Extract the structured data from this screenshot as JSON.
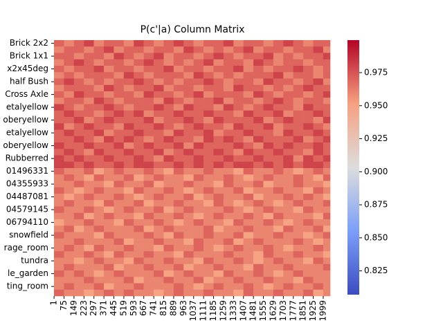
{
  "chart_data": {
    "type": "heatmap",
    "title": "P(c'|a) Column Matrix",
    "rows": [
      "Brick 2x2",
      null,
      "Brick 1x1",
      null,
      "x2x45deg",
      null,
      "half Bush",
      null,
      "Cross Axle",
      null,
      "etalyellow",
      null,
      "oberyellow",
      null,
      "etalyellow",
      null,
      "oberyellow",
      null,
      "Rubberred",
      null,
      "01496331",
      null,
      "04355933",
      null,
      "04487081",
      null,
      "04579145",
      null,
      "06794110",
      null,
      "snowfield",
      null,
      "rage_room",
      null,
      "tundra",
      null,
      "le_garden",
      null,
      "ting_room",
      null
    ],
    "x": [
      1,
      75,
      149,
      223,
      297,
      371,
      445,
      519,
      593,
      667,
      741,
      815,
      889,
      963,
      1037,
      1111,
      1185,
      1259,
      1333,
      1407,
      1481,
      1555,
      1629,
      1703,
      1777,
      1851,
      1925,
      1999
    ],
    "xticks": [
      1,
      75,
      149,
      223,
      297,
      371,
      445,
      519,
      593,
      667,
      741,
      815,
      889,
      963,
      1037,
      1111,
      1185,
      1259,
      1333,
      1407,
      1481,
      1555,
      1629,
      1703,
      1777,
      1851,
      1925,
      1999
    ],
    "xlim": [
      0.5,
      2050.5
    ],
    "values": [
      [
        0.97,
        0.96,
        0.97,
        0.98,
        0.96,
        0.97,
        0.97,
        0.96,
        0.98,
        0.97,
        0.96,
        0.97,
        0.98,
        0.97,
        0.96,
        0.97,
        0.97,
        0.98,
        0.96,
        0.97,
        0.97,
        0.96,
        0.97,
        0.98,
        0.97,
        0.96,
        0.97,
        0.97
      ],
      [
        0.96,
        0.97,
        0.97,
        0.96,
        0.97,
        0.98,
        0.96,
        0.97,
        0.97,
        0.96,
        0.97,
        0.97,
        0.96,
        0.98,
        0.97,
        0.96,
        0.97,
        0.96,
        0.97,
        0.98,
        0.96,
        0.97,
        0.97,
        0.96,
        0.97,
        0.97,
        0.98,
        0.96
      ],
      [
        0.97,
        0.97,
        0.96,
        0.97,
        0.97,
        0.96,
        0.98,
        0.97,
        0.96,
        0.97,
        0.98,
        0.96,
        0.97,
        0.97,
        0.96,
        0.97,
        0.98,
        0.97,
        0.96,
        0.97,
        0.97,
        0.98,
        0.96,
        0.97,
        0.96,
        0.97,
        0.97,
        0.98
      ],
      [
        0.96,
        0.97,
        0.98,
        0.97,
        0.96,
        0.97,
        0.97,
        0.96,
        0.97,
        0.98,
        0.97,
        0.96,
        0.97,
        0.96,
        0.97,
        0.98,
        0.96,
        0.97,
        0.97,
        0.96,
        0.98,
        0.97,
        0.96,
        0.97,
        0.97,
        0.96,
        0.97,
        0.97
      ],
      [
        0.97,
        0.96,
        0.97,
        0.97,
        0.98,
        0.96,
        0.97,
        0.97,
        0.96,
        0.97,
        0.97,
        0.98,
        0.96,
        0.97,
        0.97,
        0.96,
        0.97,
        0.97,
        0.98,
        0.96,
        0.97,
        0.96,
        0.97,
        0.97,
        0.98,
        0.97,
        0.96,
        0.97
      ],
      [
        0.96,
        0.97,
        0.96,
        0.97,
        0.97,
        0.97,
        0.96,
        0.98,
        0.97,
        0.96,
        0.97,
        0.97,
        0.97,
        0.96,
        0.98,
        0.97,
        0.96,
        0.97,
        0.96,
        0.97,
        0.97,
        0.97,
        0.98,
        0.96,
        0.97,
        0.97,
        0.96,
        0.97
      ],
      [
        0.97,
        0.98,
        0.97,
        0.96,
        0.97,
        0.96,
        0.97,
        0.97,
        0.98,
        0.97,
        0.96,
        0.97,
        0.96,
        0.97,
        0.97,
        0.98,
        0.97,
        0.96,
        0.97,
        0.97,
        0.96,
        0.98,
        0.97,
        0.97,
        0.96,
        0.97,
        0.98,
        0.96
      ],
      [
        0.96,
        0.97,
        0.97,
        0.97,
        0.96,
        0.98,
        0.97,
        0.96,
        0.97,
        0.97,
        0.98,
        0.96,
        0.97,
        0.97,
        0.96,
        0.97,
        0.97,
        0.96,
        0.98,
        0.97,
        0.97,
        0.96,
        0.97,
        0.96,
        0.97,
        0.98,
        0.97,
        0.97
      ],
      [
        0.97,
        0.96,
        0.98,
        0.97,
        0.97,
        0.96,
        0.97,
        0.97,
        0.96,
        0.98,
        0.97,
        0.97,
        0.96,
        0.97,
        0.98,
        0.96,
        0.97,
        0.97,
        0.97,
        0.96,
        0.98,
        0.97,
        0.96,
        0.97,
        0.97,
        0.96,
        0.97,
        0.98
      ],
      [
        0.96,
        0.97,
        0.97,
        0.96,
        0.98,
        0.97,
        0.96,
        0.97,
        0.97,
        0.97,
        0.96,
        0.98,
        0.97,
        0.96,
        0.97,
        0.97,
        0.98,
        0.96,
        0.97,
        0.97,
        0.96,
        0.97,
        0.98,
        0.97,
        0.96,
        0.97,
        0.97,
        0.96
      ],
      [
        0.98,
        0.97,
        0.96,
        0.97,
        0.97,
        0.98,
        0.97,
        0.96,
        0.97,
        0.97,
        0.98,
        0.97,
        0.96,
        0.98,
        0.97,
        0.97,
        0.96,
        0.98,
        0.97,
        0.96,
        0.97,
        0.98,
        0.97,
        0.97,
        0.96,
        0.98,
        0.97,
        0.97
      ],
      [
        0.97,
        0.98,
        0.97,
        0.97,
        0.96,
        0.97,
        0.98,
        0.97,
        0.98,
        0.96,
        0.97,
        0.97,
        0.98,
        0.97,
        0.97,
        0.98,
        0.97,
        0.97,
        0.96,
        0.98,
        0.97,
        0.97,
        0.98,
        0.96,
        0.97,
        0.97,
        0.98,
        0.97
      ],
      [
        0.97,
        0.97,
        0.98,
        0.96,
        0.97,
        0.98,
        0.97,
        0.97,
        0.97,
        0.98,
        0.96,
        0.97,
        0.97,
        0.98,
        0.97,
        0.96,
        0.98,
        0.97,
        0.97,
        0.97,
        0.98,
        0.96,
        0.97,
        0.98,
        0.97,
        0.97,
        0.96,
        0.98
      ],
      [
        0.98,
        0.96,
        0.97,
        0.98,
        0.97,
        0.97,
        0.96,
        0.98,
        0.97,
        0.97,
        0.98,
        0.97,
        0.96,
        0.97,
        0.98,
        0.97,
        0.97,
        0.96,
        0.98,
        0.97,
        0.97,
        0.98,
        0.96,
        0.97,
        0.97,
        0.98,
        0.97,
        0.96
      ],
      [
        0.97,
        0.98,
        0.97,
        0.97,
        0.98,
        0.96,
        0.97,
        0.97,
        0.98,
        0.97,
        0.97,
        0.96,
        0.98,
        0.97,
        0.97,
        0.98,
        0.96,
        0.97,
        0.97,
        0.98,
        0.97,
        0.97,
        0.96,
        0.98,
        0.97,
        0.97,
        0.98,
        0.97
      ],
      [
        0.97,
        0.97,
        0.98,
        0.97,
        0.96,
        0.98,
        0.97,
        0.98,
        0.97,
        0.96,
        0.97,
        0.98,
        0.97,
        0.97,
        0.96,
        0.98,
        0.97,
        0.98,
        0.97,
        0.96,
        0.98,
        0.97,
        0.97,
        0.97,
        0.98,
        0.96,
        0.97,
        0.98
      ],
      [
        0.98,
        0.97,
        0.97,
        0.98,
        0.97,
        0.97,
        0.98,
        0.96,
        0.97,
        0.98,
        0.97,
        0.97,
        0.98,
        0.96,
        0.98,
        0.97,
        0.97,
        0.97,
        0.98,
        0.97,
        0.96,
        0.98,
        0.97,
        0.98,
        0.97,
        0.97,
        0.98,
        0.97
      ],
      [
        0.97,
        0.98,
        0.97,
        0.96,
        0.98,
        0.97,
        0.97,
        0.98,
        0.97,
        0.97,
        0.98,
        0.96,
        0.97,
        0.98,
        0.97,
        0.97,
        0.98,
        0.97,
        0.96,
        0.98,
        0.97,
        0.97,
        0.98,
        0.97,
        0.97,
        0.96,
        0.98,
        0.97
      ],
      [
        0.98,
        0.97,
        0.98,
        0.97,
        0.97,
        0.98,
        0.97,
        0.97,
        0.98,
        0.97,
        0.96,
        0.98,
        0.97,
        0.97,
        0.98,
        0.97,
        0.97,
        0.98,
        0.97,
        0.97,
        0.98,
        0.97,
        0.97,
        0.98,
        0.96,
        0.98,
        0.97,
        0.98
      ],
      [
        0.98,
        0.98,
        0.97,
        0.98,
        0.97,
        0.97,
        0.98,
        0.97,
        0.98,
        0.98,
        0.97,
        0.97,
        0.98,
        0.97,
        0.98,
        0.97,
        0.98,
        0.97,
        0.98,
        0.98,
        0.97,
        0.98,
        0.97,
        0.98,
        0.97,
        0.98,
        0.98,
        0.97
      ],
      [
        0.97,
        0.96,
        0.96,
        0.97,
        0.95,
        0.96,
        0.97,
        0.96,
        0.96,
        0.97,
        0.96,
        0.95,
        0.97,
        0.96,
        0.96,
        0.97,
        0.96,
        0.96,
        0.95,
        0.97,
        0.96,
        0.96,
        0.97,
        0.96,
        0.95,
        0.96,
        0.97,
        0.96
      ],
      [
        0.96,
        0.97,
        0.96,
        0.95,
        0.97,
        0.96,
        0.96,
        0.97,
        0.95,
        0.96,
        0.97,
        0.96,
        0.96,
        0.95,
        0.97,
        0.96,
        0.96,
        0.97,
        0.96,
        0.95,
        0.96,
        0.97,
        0.96,
        0.96,
        0.97,
        0.96,
        0.95,
        0.97
      ],
      [
        0.96,
        0.96,
        0.97,
        0.96,
        0.96,
        0.95,
        0.97,
        0.96,
        0.96,
        0.97,
        0.95,
        0.96,
        0.96,
        0.97,
        0.96,
        0.96,
        0.95,
        0.97,
        0.96,
        0.96,
        0.97,
        0.95,
        0.96,
        0.96,
        0.97,
        0.96,
        0.96,
        0.95
      ],
      [
        0.97,
        0.96,
        0.95,
        0.96,
        0.97,
        0.96,
        0.96,
        0.95,
        0.97,
        0.96,
        0.96,
        0.97,
        0.96,
        0.95,
        0.96,
        0.97,
        0.96,
        0.96,
        0.97,
        0.95,
        0.96,
        0.96,
        0.97,
        0.96,
        0.96,
        0.95,
        0.97,
        0.96
      ],
      [
        0.96,
        0.95,
        0.96,
        0.97,
        0.96,
        0.96,
        0.97,
        0.96,
        0.95,
        0.96,
        0.97,
        0.96,
        0.96,
        0.97,
        0.95,
        0.96,
        0.97,
        0.96,
        0.96,
        0.97,
        0.95,
        0.96,
        0.96,
        0.97,
        0.96,
        0.97,
        0.96,
        0.95
      ],
      [
        0.96,
        0.97,
        0.96,
        0.96,
        0.95,
        0.97,
        0.96,
        0.96,
        0.97,
        0.95,
        0.96,
        0.96,
        0.97,
        0.96,
        0.96,
        0.95,
        0.97,
        0.96,
        0.95,
        0.96,
        0.97,
        0.96,
        0.95,
        0.96,
        0.97,
        0.96,
        0.96,
        0.97
      ],
      [
        0.97,
        0.96,
        0.96,
        0.97,
        0.96,
        0.95,
        0.96,
        0.97,
        0.96,
        0.96,
        0.97,
        0.95,
        0.96,
        0.97,
        0.96,
        0.96,
        0.96,
        0.97,
        0.96,
        0.95,
        0.96,
        0.97,
        0.96,
        0.96,
        0.95,
        0.97,
        0.96,
        0.96
      ],
      [
        0.96,
        0.96,
        0.97,
        0.95,
        0.96,
        0.97,
        0.96,
        0.96,
        0.95,
        0.97,
        0.96,
        0.96,
        0.97,
        0.96,
        0.95,
        0.96,
        0.97,
        0.96,
        0.96,
        0.97,
        0.96,
        0.95,
        0.97,
        0.96,
        0.96,
        0.96,
        0.95,
        0.97
      ],
      [
        0.95,
        0.96,
        0.96,
        0.97,
        0.96,
        0.96,
        0.95,
        0.97,
        0.96,
        0.96,
        0.97,
        0.96,
        0.95,
        0.96,
        0.97,
        0.96,
        0.96,
        0.95,
        0.97,
        0.96,
        0.96,
        0.97,
        0.96,
        0.95,
        0.96,
        0.97,
        0.96,
        0.96
      ],
      [
        0.96,
        0.97,
        0.95,
        0.96,
        0.97,
        0.96,
        0.96,
        0.96,
        0.97,
        0.95,
        0.96,
        0.97,
        0.96,
        0.96,
        0.96,
        0.97,
        0.95,
        0.96,
        0.96,
        0.97,
        0.96,
        0.96,
        0.95,
        0.97,
        0.96,
        0.96,
        0.97,
        0.95
      ],
      [
        0.97,
        0.96,
        0.96,
        0.96,
        0.95,
        0.97,
        0.96,
        0.96,
        0.96,
        0.97,
        0.96,
        0.95,
        0.97,
        0.96,
        0.96,
        0.97,
        0.96,
        0.96,
        0.97,
        0.95,
        0.96,
        0.96,
        0.97,
        0.96,
        0.96,
        0.95,
        0.96,
        0.97
      ],
      [
        0.96,
        0.96,
        0.97,
        0.96,
        0.96,
        0.96,
        0.97,
        0.95,
        0.96,
        0.96,
        0.97,
        0.96,
        0.96,
        0.95,
        0.97,
        0.96,
        0.96,
        0.97,
        0.95,
        0.96,
        0.97,
        0.96,
        0.96,
        0.96,
        0.97,
        0.96,
        0.95,
        0.96
      ],
      [
        0.96,
        0.97,
        0.96,
        0.95,
        0.97,
        0.96,
        0.96,
        0.97,
        0.96,
        0.96,
        0.95,
        0.97,
        0.96,
        0.96,
        0.97,
        0.96,
        0.95,
        0.96,
        0.97,
        0.96,
        0.96,
        0.97,
        0.96,
        0.95,
        0.96,
        0.96,
        0.97,
        0.96
      ],
      [
        0.97,
        0.96,
        0.96,
        0.97,
        0.96,
        0.95,
        0.97,
        0.96,
        0.96,
        0.97,
        0.96,
        0.96,
        0.95,
        0.97,
        0.96,
        0.96,
        0.96,
        0.97,
        0.96,
        0.96,
        0.95,
        0.97,
        0.96,
        0.96,
        0.97,
        0.96,
        0.96,
        0.95
      ],
      [
        0.96,
        0.96,
        0.95,
        0.96,
        0.97,
        0.96,
        0.96,
        0.95,
        0.97,
        0.96,
        0.96,
        0.97,
        0.96,
        0.96,
        0.95,
        0.97,
        0.96,
        0.96,
        0.97,
        0.96,
        0.95,
        0.96,
        0.97,
        0.96,
        0.96,
        0.95,
        0.97,
        0.96
      ],
      [
        0.96,
        0.97,
        0.96,
        0.96,
        0.96,
        0.97,
        0.95,
        0.96,
        0.96,
        0.97,
        0.96,
        0.96,
        0.97,
        0.95,
        0.96,
        0.96,
        0.97,
        0.96,
        0.96,
        0.95,
        0.97,
        0.96,
        0.96,
        0.97,
        0.96,
        0.96,
        0.96,
        0.97
      ],
      [
        0.97,
        0.96,
        0.97,
        0.96,
        0.95,
        0.96,
        0.97,
        0.96,
        0.96,
        0.96,
        0.97,
        0.95,
        0.96,
        0.97,
        0.96,
        0.96,
        0.95,
        0.97,
        0.96,
        0.96,
        0.97,
        0.96,
        0.95,
        0.96,
        0.97,
        0.96,
        0.96,
        0.96
      ],
      [
        0.96,
        0.96,
        0.96,
        0.97,
        0.96,
        0.96,
        0.96,
        0.97,
        0.95,
        0.96,
        0.96,
        0.97,
        0.96,
        0.96,
        0.97,
        0.95,
        0.96,
        0.96,
        0.97,
        0.96,
        0.96,
        0.97,
        0.96,
        0.96,
        0.95,
        0.97,
        0.96,
        0.96
      ],
      [
        0.96,
        0.97,
        0.96,
        0.96,
        0.97,
        0.95,
        0.96,
        0.96,
        0.97,
        0.96,
        0.96,
        0.96,
        0.97,
        0.96,
        0.95,
        0.96,
        0.97,
        0.96,
        0.96,
        0.97,
        0.96,
        0.95,
        0.96,
        0.97,
        0.96,
        0.96,
        0.97,
        0.96
      ],
      [
        0.97,
        0.96,
        0.96,
        0.95,
        0.96,
        0.97,
        0.96,
        0.97,
        0.96,
        0.96,
        0.95,
        0.96,
        0.97,
        0.96,
        0.96,
        0.97,
        0.96,
        0.96,
        0.95,
        0.97,
        0.96,
        0.96,
        0.97,
        0.96,
        0.96,
        0.97,
        0.95,
        0.96
      ]
    ],
    "colormap": "coolwarm",
    "clim": [
      0.807,
      0.9996
    ],
    "colorbar_ticks": [
      0.825,
      0.85,
      0.875,
      0.9,
      0.925,
      0.95,
      0.975
    ],
    "colorbar_tick_labels": [
      "0.825",
      "0.850",
      "0.875",
      "0.900",
      "0.925",
      "0.950",
      "0.975"
    ]
  }
}
